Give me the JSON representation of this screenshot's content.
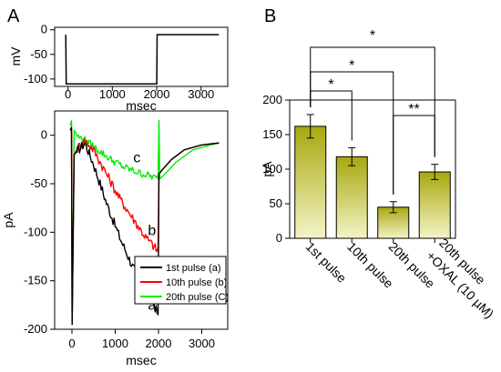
{
  "panels": {
    "a": "A",
    "b": "B"
  },
  "chart_data": [
    {
      "type": "line",
      "panel": "A-top",
      "ylabel": "mV",
      "xlabel": "msec",
      "xlim": [
        -300,
        3600
      ],
      "ylim": [
        -115,
        5
      ],
      "xticks": [
        0,
        1000,
        2000,
        3000
      ],
      "yticks": [
        0,
        -50,
        -100
      ],
      "series": [
        {
          "values": [
            [
              -50,
              -10
            ],
            [
              -40,
              -110
            ],
            [
              2000,
              -110
            ],
            [
              2010,
              -10
            ],
            [
              3400,
              -10
            ]
          ]
        }
      ]
    },
    {
      "type": "line",
      "panel": "A-bottom",
      "ylabel": "pA",
      "xlabel": "msec",
      "xlim": [
        -400,
        3600
      ],
      "ylim": [
        -200,
        25
      ],
      "xticks": [
        0,
        1000,
        2000,
        3000
      ],
      "yticks": [
        0,
        -50,
        -100,
        -150,
        -200
      ],
      "legend_position": "bottom-right",
      "series": [
        {
          "name": "1st pulse (a)",
          "color": "#000000",
          "label": "a",
          "values": [
            [
              -40,
              5
            ],
            [
              -10,
              8
            ],
            [
              5,
              -195
            ],
            [
              50,
              -20
            ],
            [
              150,
              -15
            ],
            [
              300,
              -8
            ],
            [
              500,
              -30
            ],
            [
              800,
              -70
            ],
            [
              1100,
              -105
            ],
            [
              1400,
              -135
            ],
            [
              1700,
              -160
            ],
            [
              1900,
              -175
            ],
            [
              1990,
              -185
            ],
            [
              2010,
              -40
            ],
            [
              2100,
              -35
            ],
            [
              2300,
              -25
            ],
            [
              2600,
              -15
            ],
            [
              3000,
              -10
            ],
            [
              3400,
              -8
            ]
          ]
        },
        {
          "name": "10th pulse (b)",
          "color": "#ff0000",
          "label": "b",
          "values": [
            [
              -40,
              5
            ],
            [
              -10,
              8
            ],
            [
              5,
              -195
            ],
            [
              50,
              -20
            ],
            [
              150,
              -12
            ],
            [
              300,
              -5
            ],
            [
              500,
              -15
            ],
            [
              800,
              -40
            ],
            [
              1100,
              -65
            ],
            [
              1400,
              -85
            ],
            [
              1700,
              -105
            ],
            [
              1900,
              -115
            ],
            [
              1990,
              -120
            ],
            [
              2010,
              -40
            ],
            [
              2100,
              -35
            ],
            [
              2300,
              -25
            ],
            [
              2600,
              -15
            ],
            [
              3000,
              -10
            ],
            [
              3400,
              -8
            ]
          ]
        },
        {
          "name": "20th pulse (C)",
          "color": "#00ee00",
          "label": "c",
          "values": [
            [
              -40,
              10
            ],
            [
              -10,
              15
            ],
            [
              5,
              -195
            ],
            [
              50,
              5
            ],
            [
              150,
              -2
            ],
            [
              300,
              -5
            ],
            [
              600,
              -15
            ],
            [
              900,
              -25
            ],
            [
              1200,
              -33
            ],
            [
              1500,
              -38
            ],
            [
              1800,
              -42
            ],
            [
              1990,
              -45
            ],
            [
              2010,
              15
            ],
            [
              2030,
              -45
            ],
            [
              2150,
              -40
            ],
            [
              2400,
              -28
            ],
            [
              2800,
              -15
            ],
            [
              3200,
              -10
            ],
            [
              3400,
              -8
            ]
          ]
        }
      ]
    },
    {
      "type": "bar",
      "panel": "B",
      "ylabel": "pA",
      "ylim": [
        0,
        200
      ],
      "yticks": [
        0,
        50,
        100,
        150,
        200
      ],
      "categories": [
        "1st pulse",
        "10th pulse",
        "20th pulse",
        "20th pulse\n+OXAL (10 µM)"
      ],
      "category_lines": [
        [
          "1st pulse"
        ],
        [
          "10th pulse"
        ],
        [
          "20th pulse"
        ],
        [
          "20th pulse",
          "+OXAL (10 µM)"
        ]
      ],
      "values": [
        162,
        118,
        45,
        96
      ],
      "errors": [
        17,
        13,
        8,
        11
      ],
      "bar_color": "#b5b51f",
      "significance": [
        {
          "from": 0,
          "to": 1,
          "label": "*"
        },
        {
          "from": 0,
          "to": 2,
          "label": "*"
        },
        {
          "from": 0,
          "to": 3,
          "label": "*"
        },
        {
          "from": 2,
          "to": 3,
          "label": "**"
        }
      ]
    }
  ]
}
